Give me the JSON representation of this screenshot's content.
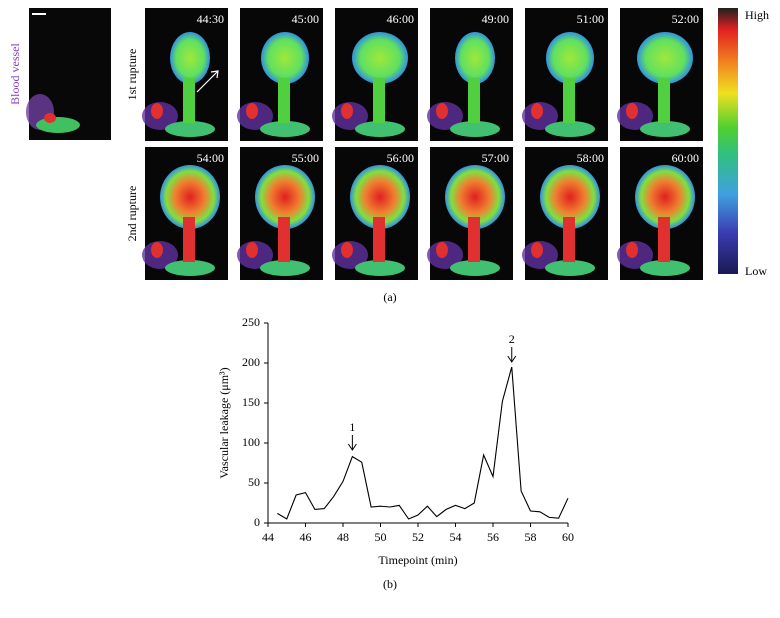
{
  "panel_a": {
    "vessel_label": "Blood vessel",
    "rows": [
      {
        "label": "1st rupture",
        "times": [
          "44:30",
          "45:00",
          "46:00",
          "49:00",
          "51:00",
          "52:00"
        ]
      },
      {
        "label": "2nd rupture",
        "times": [
          "54:00",
          "55:00",
          "56:00",
          "57:00",
          "58:00",
          "60:00"
        ]
      }
    ],
    "colorbar_high": "High",
    "colorbar_low": "Low",
    "caption": "(a)"
  },
  "chart_data": {
    "type": "line",
    "x_label": "Timepoint (min)",
    "y_label": "Vascular leakage (μm³)",
    "x": [
      44.5,
      45,
      45.5,
      46,
      46.5,
      47,
      47.5,
      48,
      48.5,
      49,
      49.5,
      50,
      50.5,
      51,
      51.5,
      52,
      52.5,
      53,
      53.5,
      54,
      54.5,
      55,
      55.5,
      56,
      56.5,
      57,
      57.5,
      58,
      58.5,
      59,
      59.5,
      60
    ],
    "values": [
      12,
      5,
      35,
      38,
      17,
      18,
      33,
      52,
      83,
      76,
      20,
      21,
      20,
      22,
      5,
      10,
      21,
      8,
      17,
      22,
      18,
      25,
      85,
      58,
      152,
      195,
      40,
      15,
      14,
      7,
      6,
      31
    ],
    "color": "#000000",
    "xlim": [
      44,
      60
    ],
    "ylim": [
      0,
      250
    ],
    "xticks": [
      44,
      46,
      48,
      50,
      52,
      54,
      56,
      58,
      60
    ],
    "yticks": [
      0,
      50,
      100,
      150,
      200,
      250
    ],
    "annotations": [
      {
        "text": "1",
        "x": 48.5
      },
      {
        "text": "2",
        "x": 57
      }
    ],
    "caption": "(b)"
  }
}
